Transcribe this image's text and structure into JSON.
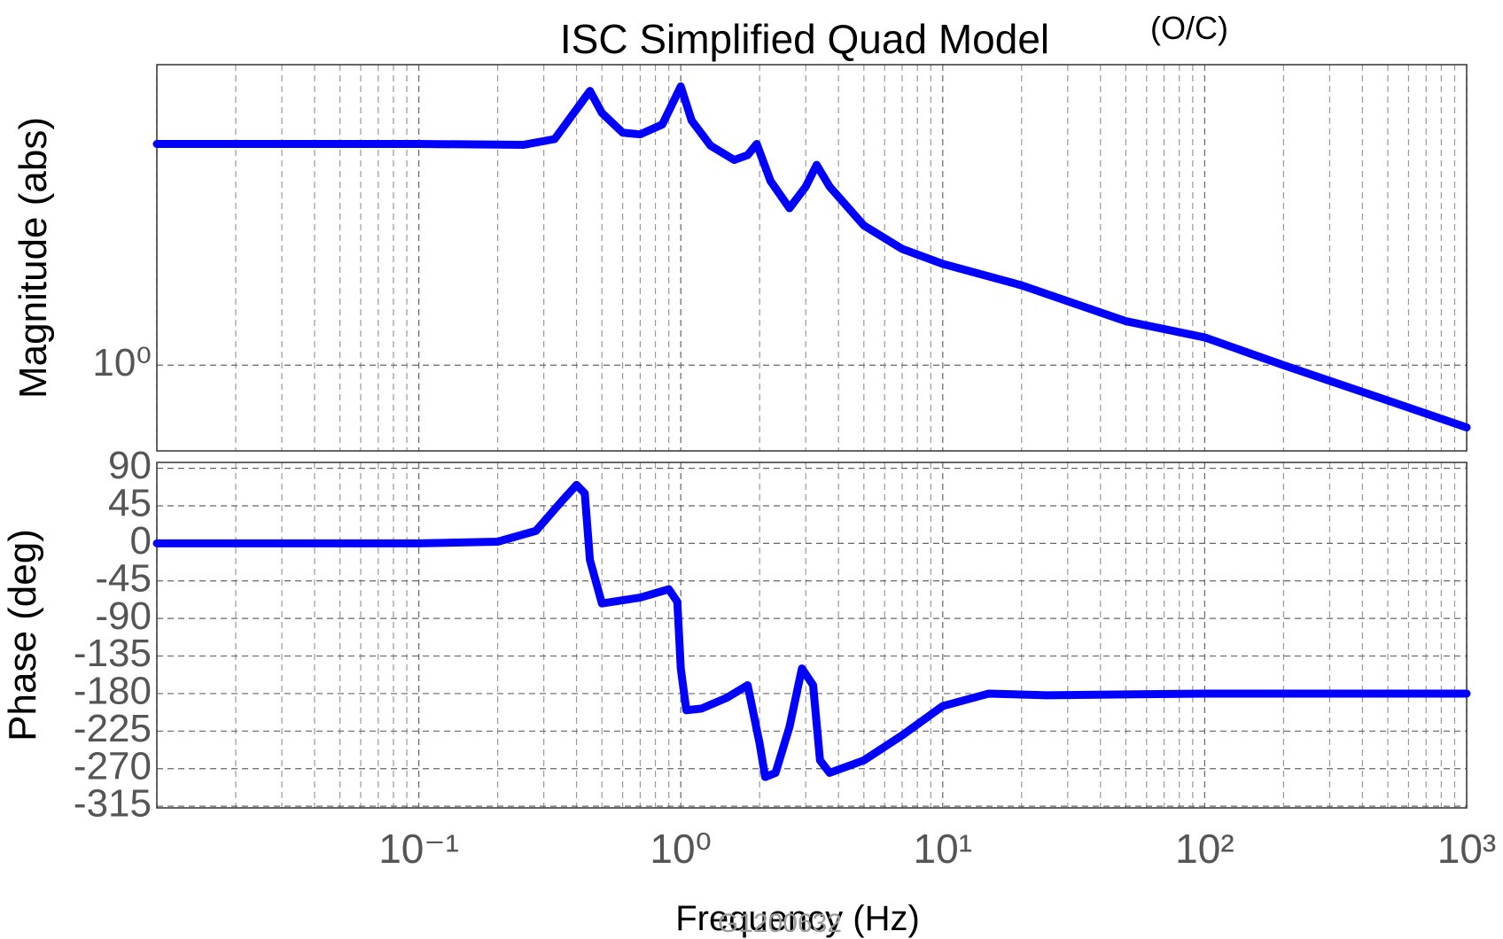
{
  "title": "ISC Simplified Quad Model",
  "note": "(O/C)",
  "x_label": "Frequency (Hz)",
  "watermark": "G1200632",
  "chart_data": [
    {
      "type": "line",
      "ylabel": "Magnitude (abs)",
      "xlog": true,
      "ylog": true,
      "grid": true,
      "minor_grid": true,
      "xlim": [
        0.01,
        1000
      ],
      "ylim": [
        0.6,
        6
      ],
      "xticks": [
        0.01,
        0.1,
        1,
        10,
        100,
        1000
      ],
      "yticks": [
        {
          "value": 1,
          "label": "10⁰"
        }
      ],
      "series": [
        {
          "name": "magnitude",
          "color": "#0000ff",
          "x": [
            0.01,
            0.1,
            0.25,
            0.33,
            0.4,
            0.45,
            0.5,
            0.6,
            0.7,
            0.85,
            1.0,
            1.1,
            1.3,
            1.6,
            1.8,
            1.95,
            2.2,
            2.6,
            3.0,
            3.3,
            3.7,
            5,
            7,
            10,
            20,
            50,
            100,
            200,
            500,
            1000
          ],
          "values": [
            3.74,
            3.74,
            3.72,
            3.85,
            4.6,
            5.13,
            4.5,
            4.0,
            3.96,
            4.2,
            5.27,
            4.3,
            3.7,
            3.4,
            3.5,
            3.74,
            3.0,
            2.55,
            2.9,
            3.3,
            2.9,
            2.3,
            2.0,
            1.83,
            1.61,
            1.3,
            1.18,
            1.0,
            0.81,
            0.69
          ]
        }
      ]
    },
    {
      "type": "line",
      "ylabel": "Phase (deg)",
      "xlog": true,
      "ylog": false,
      "grid": true,
      "minor_grid": true,
      "xlim": [
        0.01,
        1000
      ],
      "ylim": [
        -317,
        97
      ],
      "xticks": [
        0.01,
        {
          "value": 0.1,
          "label": "10⁻¹"
        },
        {
          "value": 1,
          "label": "10⁰"
        },
        {
          "value": 10,
          "label": "10¹"
        },
        {
          "value": 100,
          "label": "10²"
        },
        {
          "value": 1000,
          "label": "10³"
        }
      ],
      "yticks": [
        90,
        45,
        0,
        -45,
        -90,
        -135,
        -180,
        -225,
        -270,
        -315
      ],
      "series": [
        {
          "name": "phase",
          "color": "#0000ff",
          "x": [
            0.01,
            0.1,
            0.2,
            0.28,
            0.35,
            0.4,
            0.43,
            0.45,
            0.5,
            0.7,
            0.9,
            0.97,
            1.0,
            1.05,
            1.2,
            1.5,
            1.8,
            2.0,
            2.1,
            2.3,
            2.6,
            2.9,
            3.2,
            3.4,
            3.7,
            5,
            7,
            10,
            15,
            25,
            100,
            1000
          ],
          "values": [
            0,
            0,
            2,
            15,
            50,
            70,
            60,
            -20,
            -72,
            -65,
            -55,
            -70,
            -150,
            -200,
            -198,
            -185,
            -170,
            -240,
            -280,
            -275,
            -220,
            -150,
            -170,
            -260,
            -275,
            -260,
            -230,
            -195,
            -180,
            -182,
            -180,
            -180
          ]
        }
      ]
    }
  ]
}
